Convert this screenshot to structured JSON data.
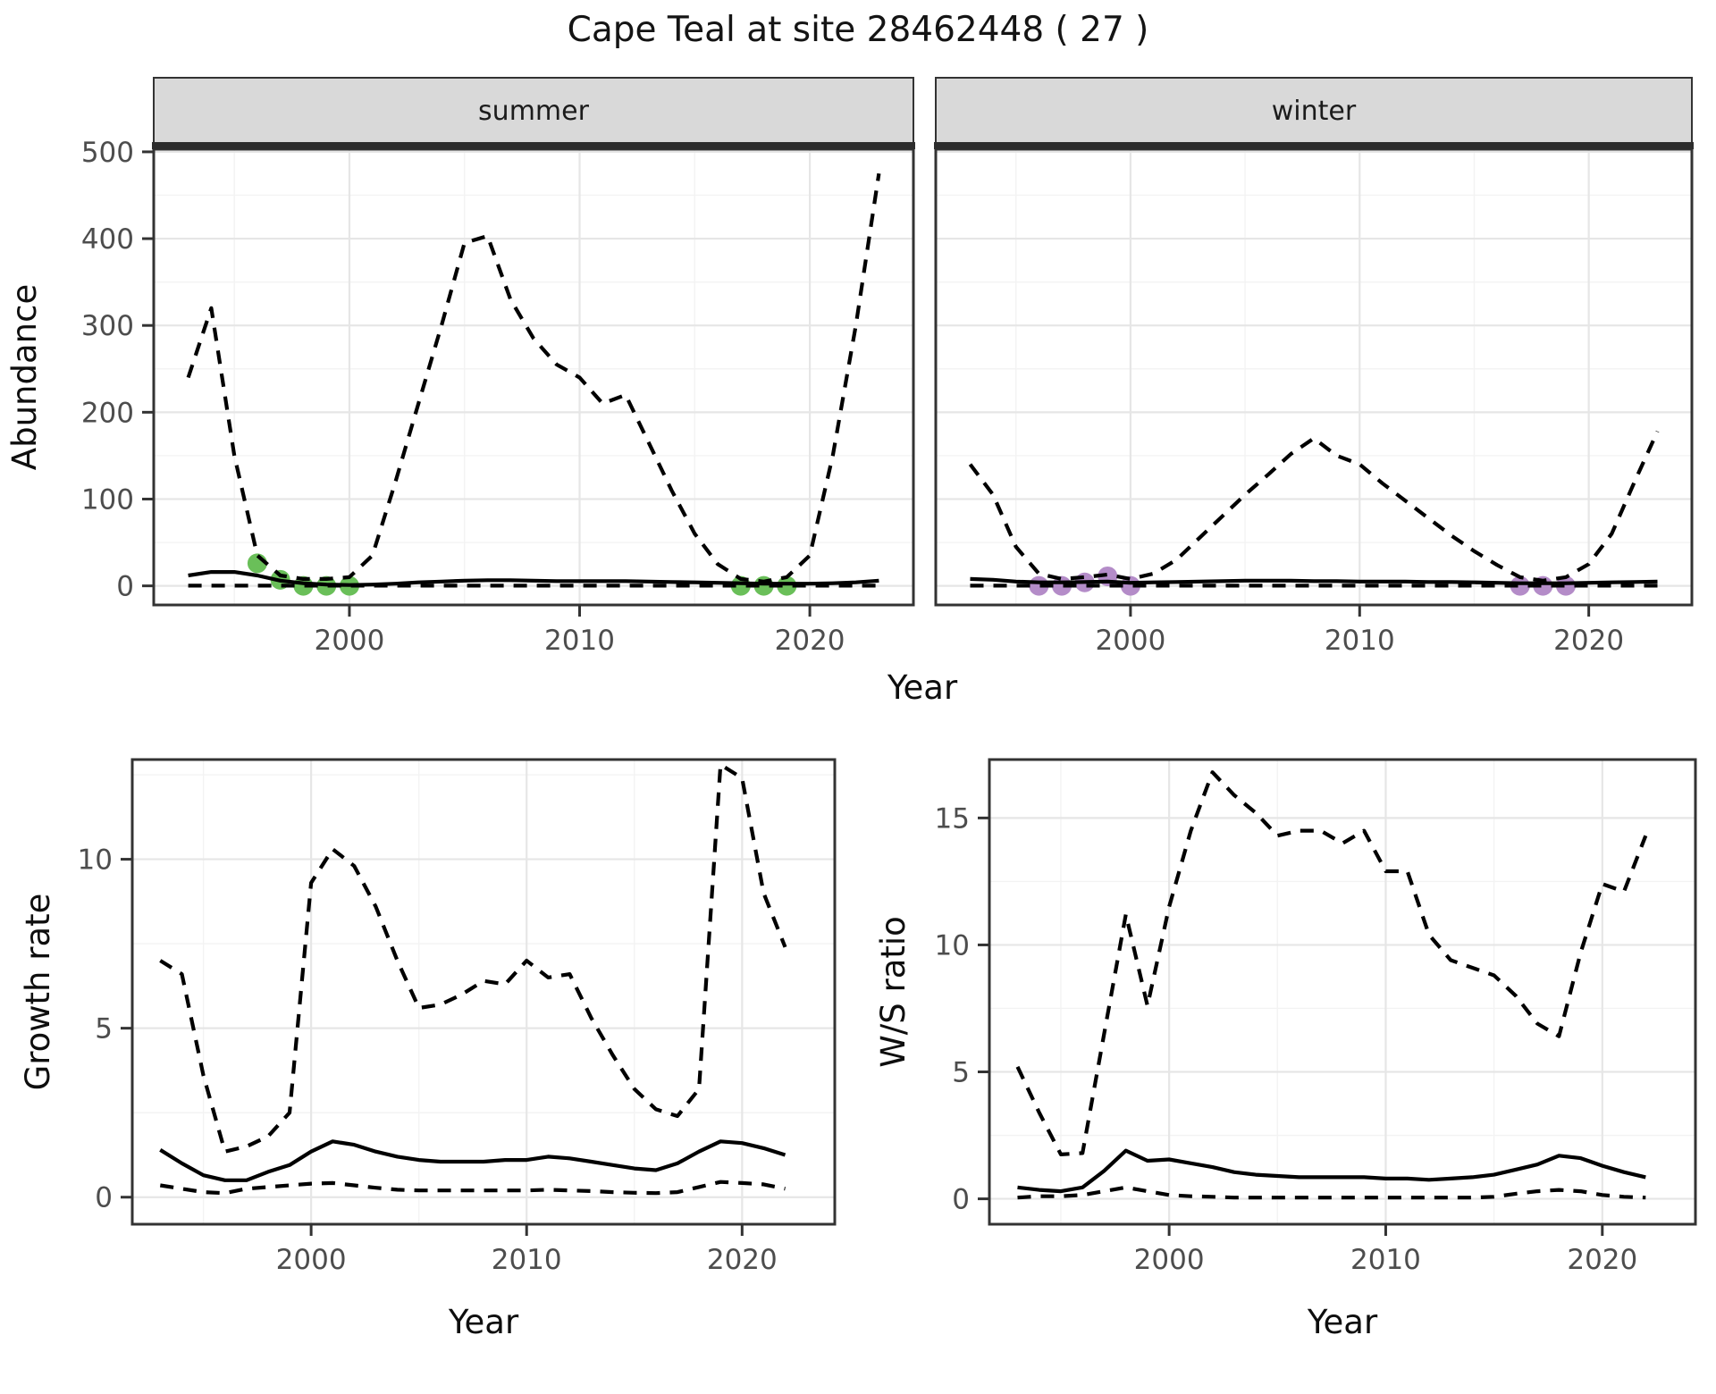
{
  "chart_data": {
    "type": "line",
    "title": "Cape Teal at site 28462448 ( 27 )",
    "legend_position": "none",
    "grid": "on",
    "colors": {
      "summer_dot": "#6abf59",
      "winter_dot": "#b48cc8",
      "line": "#000000",
      "strip_bg": "#d9d9d9",
      "panel_border": "#333333",
      "grid_major": "#e6e6e6",
      "grid_minor": "#f3f3f3",
      "tick_text": "#4d4d4d"
    },
    "panels": [
      {
        "id": "abundance-summer",
        "facet": "summer",
        "xlabel": "Year",
        "ylabel": "Abundance",
        "xticks": [
          2000,
          2010,
          2020
        ],
        "yticks": [
          0,
          100,
          200,
          300,
          400,
          500
        ],
        "xlim": [
          1991.5,
          2024.5
        ],
        "ylim": [
          -22,
          503
        ],
        "x": [
          1993,
          1994,
          1995,
          1996,
          1997,
          1998,
          1999,
          2000,
          2001,
          2002,
          2003,
          2004,
          2005,
          2006,
          2007,
          2008,
          2009,
          2010,
          2011,
          2012,
          2013,
          2014,
          2015,
          2016,
          2017,
          2018,
          2019,
          2020,
          2021,
          2022,
          2023
        ],
        "series": [
          {
            "name": "upper_ci",
            "style": "dashed",
            "values": [
              240,
              320,
              150,
              35,
              12,
              8,
              8,
              10,
              35,
              120,
              210,
              300,
              395,
              403,
              330,
              285,
              255,
              240,
              210,
              220,
              165,
              110,
              60,
              25,
              8,
              5,
              10,
              35,
              150,
              300,
              475
            ]
          },
          {
            "name": "estimate",
            "style": "solid",
            "values": [
              12,
              16,
              16,
              12,
              6,
              3,
              1.5,
              1,
              1.5,
              2.5,
              4,
              5,
              6,
              6.5,
              6.5,
              6,
              5.5,
              5.5,
              5.5,
              5.5,
              5,
              4.5,
              4,
              3.5,
              3,
              2.5,
              2.5,
              2.5,
              3,
              4,
              6
            ]
          },
          {
            "name": "lower_ci",
            "style": "dashed",
            "values": [
              0.2,
              0.2,
              0.2,
              0.2,
              0.2,
              0.2,
              0.2,
              0.2,
              0.2,
              0.2,
              0.2,
              0.2,
              0.2,
              0.2,
              0.2,
              0.2,
              0.2,
              0.2,
              0.2,
              0.2,
              0.2,
              0.2,
              0.2,
              0.2,
              0.2,
              0.2,
              0.2,
              0.2,
              0.2,
              0.2,
              0.2
            ]
          }
        ],
        "points": {
          "name": "observed-counts-summer",
          "color": "#6abf59",
          "xy": [
            [
              1996,
              26
            ],
            [
              1997,
              7
            ],
            [
              1998,
              0
            ],
            [
              1999,
              0
            ],
            [
              2000,
              0
            ],
            [
              2017,
              0
            ],
            [
              2018,
              0
            ],
            [
              2019,
              0
            ]
          ]
        }
      },
      {
        "id": "abundance-winter",
        "facet": "winter",
        "xlabel": "Year",
        "ylabel": "Abundance",
        "xticks": [
          2000,
          2010,
          2020
        ],
        "yticks": [
          0,
          100,
          200,
          300,
          400,
          500
        ],
        "xlim": [
          1991.5,
          2024.5
        ],
        "ylim": [
          -22,
          503
        ],
        "x": [
          1993,
          1994,
          1995,
          1996,
          1997,
          1998,
          1999,
          2000,
          2001,
          2002,
          2003,
          2004,
          2005,
          2006,
          2007,
          2008,
          2009,
          2010,
          2011,
          2012,
          2013,
          2014,
          2015,
          2016,
          2017,
          2018,
          2019,
          2020,
          2021,
          2022,
          2023
        ],
        "series": [
          {
            "name": "upper_ci",
            "style": "dashed",
            "values": [
              140,
              105,
              45,
              14,
              8,
              10,
              13,
              8,
              14,
              30,
              55,
              80,
              105,
              128,
              152,
              170,
              150,
              140,
              118,
              98,
              78,
              58,
              40,
              24,
              10,
              6,
              10,
              25,
              60,
              120,
              178
            ]
          },
          {
            "name": "estimate",
            "style": "solid",
            "values": [
              8,
              7,
              5,
              4,
              4,
              4.5,
              5,
              3.5,
              4,
              4.5,
              5,
              5.5,
              6,
              6,
              6,
              5.5,
              5.5,
              5,
              5,
              5,
              4.5,
              4.5,
              4,
              3.5,
              3,
              3,
              3,
              3.5,
              4,
              4.5,
              5
            ]
          },
          {
            "name": "lower_ci",
            "style": "dashed",
            "values": [
              0.2,
              0.2,
              0.2,
              0.2,
              0.2,
              0.2,
              0.2,
              0.2,
              0.2,
              0.2,
              0.2,
              0.2,
              0.2,
              0.2,
              0.2,
              0.2,
              0.2,
              0.2,
              0.2,
              0.2,
              0.2,
              0.2,
              0.2,
              0.2,
              0.2,
              0.2,
              0.2,
              0.2,
              0.2,
              0.2,
              0.2
            ]
          }
        ],
        "points": {
          "name": "observed-counts-winter",
          "color": "#b48cc8",
          "xy": [
            [
              1996,
              0
            ],
            [
              1997,
              0
            ],
            [
              1998,
              4
            ],
            [
              1999,
              11
            ],
            [
              2000,
              0
            ],
            [
              2017,
              0
            ],
            [
              2018,
              0
            ],
            [
              2019,
              0
            ]
          ]
        }
      },
      {
        "id": "growth-rate",
        "facet": "",
        "xlabel": "Year",
        "ylabel": "Growth rate",
        "xticks": [
          2000,
          2010,
          2020
        ],
        "yticks": [
          0,
          5,
          10
        ],
        "xlim": [
          1991.7,
          2024.3
        ],
        "ylim": [
          -0.8,
          12.95
        ],
        "x": [
          1993,
          1994,
          1995,
          1996,
          1997,
          1998,
          1999,
          2000,
          2001,
          2002,
          2003,
          2004,
          2005,
          2006,
          2007,
          2008,
          2009,
          2010,
          2011,
          2012,
          2013,
          2014,
          2015,
          2016,
          2017,
          2018,
          2019,
          2020,
          2021,
          2022
        ],
        "series": [
          {
            "name": "upper_ci",
            "style": "dashed",
            "values": [
              7.0,
              6.6,
              3.6,
              1.35,
              1.5,
              1.8,
              2.5,
              9.3,
              10.3,
              9.8,
              8.6,
              7.0,
              5.6,
              5.7,
              6.0,
              6.4,
              6.3,
              7.0,
              6.5,
              6.6,
              5.3,
              4.2,
              3.2,
              2.6,
              2.4,
              3.2,
              12.8,
              12.4,
              9.0,
              7.4
            ]
          },
          {
            "name": "estimate",
            "style": "solid",
            "values": [
              1.4,
              1.0,
              0.65,
              0.5,
              0.5,
              0.75,
              0.95,
              1.35,
              1.65,
              1.55,
              1.35,
              1.2,
              1.1,
              1.05,
              1.05,
              1.05,
              1.1,
              1.1,
              1.2,
              1.15,
              1.05,
              0.95,
              0.85,
              0.8,
              1.0,
              1.35,
              1.65,
              1.6,
              1.45,
              1.25
            ]
          },
          {
            "name": "lower_ci",
            "style": "dashed",
            "values": [
              0.35,
              0.25,
              0.15,
              0.12,
              0.25,
              0.3,
              0.35,
              0.4,
              0.42,
              0.35,
              0.28,
              0.22,
              0.2,
              0.2,
              0.2,
              0.2,
              0.2,
              0.2,
              0.22,
              0.2,
              0.18,
              0.15,
              0.13,
              0.12,
              0.15,
              0.3,
              0.45,
              0.42,
              0.38,
              0.25
            ]
          }
        ]
      },
      {
        "id": "ws-ratio",
        "facet": "",
        "xlabel": "Year",
        "ylabel": "W/S ratio",
        "xticks": [
          2000,
          2010,
          2020
        ],
        "yticks": [
          0,
          5,
          10,
          15
        ],
        "xlim": [
          1991.7,
          2024.3
        ],
        "ylim": [
          -1.0,
          17.3
        ],
        "x": [
          1993,
          1994,
          1995,
          1996,
          1997,
          1998,
          1999,
          2000,
          2001,
          2002,
          2003,
          2004,
          2005,
          2006,
          2007,
          2008,
          2009,
          2010,
          2011,
          2012,
          2013,
          2014,
          2015,
          2016,
          2017,
          2018,
          2019,
          2020,
          2021,
          2022
        ],
        "series": [
          {
            "name": "upper_ci",
            "style": "dashed",
            "values": [
              5.2,
              3.4,
              1.75,
              1.8,
              6.5,
              11.2,
              7.6,
              11.5,
              14.5,
              16.8,
              15.9,
              15.2,
              14.3,
              14.5,
              14.5,
              14.0,
              14.5,
              12.9,
              12.9,
              10.4,
              9.4,
              9.1,
              8.8,
              8.0,
              6.9,
              6.4,
              9.7,
              12.4,
              12.1,
              14.3
            ]
          },
          {
            "name": "estimate",
            "style": "solid",
            "values": [
              0.45,
              0.35,
              0.3,
              0.45,
              1.1,
              1.9,
              1.5,
              1.55,
              1.4,
              1.25,
              1.05,
              0.95,
              0.9,
              0.85,
              0.85,
              0.85,
              0.85,
              0.8,
              0.8,
              0.75,
              0.8,
              0.85,
              0.95,
              1.15,
              1.35,
              1.7,
              1.6,
              1.3,
              1.05,
              0.85
            ]
          },
          {
            "name": "lower_ci",
            "style": "dashed",
            "values": [
              0.05,
              0.1,
              0.1,
              0.15,
              0.3,
              0.45,
              0.3,
              0.15,
              0.1,
              0.08,
              0.05,
              0.05,
              0.05,
              0.05,
              0.05,
              0.05,
              0.05,
              0.05,
              0.05,
              0.05,
              0.05,
              0.05,
              0.08,
              0.2,
              0.3,
              0.35,
              0.3,
              0.15,
              0.08,
              0.05
            ]
          }
        ]
      }
    ]
  }
}
